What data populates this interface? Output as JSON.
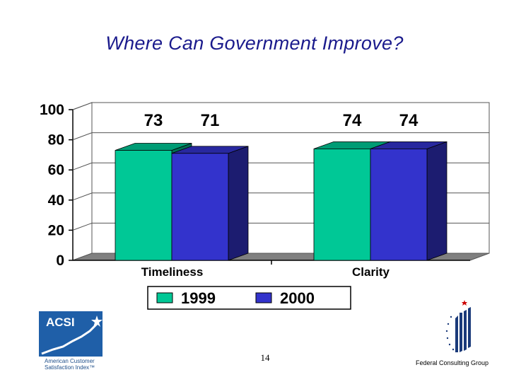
{
  "slide": {
    "title": "Where Can Government Improve?",
    "page_number": "14",
    "footer_org": "Federal Consulting Group"
  },
  "logo": {
    "acronym": "ACSI",
    "line1": "American Customer",
    "line2": "Satisfaction Index™",
    "icon": "rising-chart-star-icon"
  },
  "fcg_logo_icon": "stars-and-stripes-icon",
  "chart_data": {
    "type": "bar",
    "categories": [
      "Timeliness",
      "Clarity"
    ],
    "series": [
      {
        "name": "1999",
        "values": [
          73,
          74
        ],
        "color": "#00c896"
      },
      {
        "name": "2000",
        "values": [
          71,
          74
        ],
        "color": "#3333cc"
      }
    ],
    "data_labels": [
      "73",
      "71",
      "74",
      "74"
    ],
    "ylim": [
      0,
      100
    ],
    "yticks": [
      "0",
      "20",
      "40",
      "60",
      "80",
      "100"
    ],
    "grid": true,
    "legend_position": "bottom",
    "three_d": true
  }
}
